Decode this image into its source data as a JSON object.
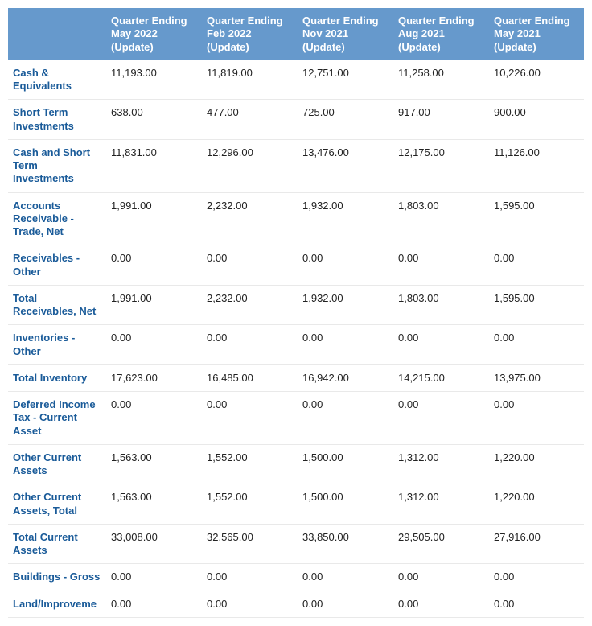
{
  "table": {
    "columns": [
      "",
      "Quarter Ending May 2022 (Update)",
      "Quarter Ending Feb 2022 (Update)",
      "Quarter Ending Nov 2021 (Update)",
      "Quarter Ending Aug 2021 (Update)",
      "Quarter Ending May 2021 (Update)"
    ],
    "rows": [
      {
        "label": "Cash & Equivalents",
        "values": [
          "11,193.00",
          "11,819.00",
          "12,751.00",
          "11,258.00",
          "10,226.00"
        ]
      },
      {
        "label": "Short Term Investments",
        "values": [
          "638.00",
          "477.00",
          "725.00",
          "917.00",
          "900.00"
        ]
      },
      {
        "label": "Cash and Short Term Investments",
        "values": [
          "11,831.00",
          "12,296.00",
          "13,476.00",
          "12,175.00",
          "11,126.00"
        ]
      },
      {
        "label": "Accounts Receivable - Trade, Net",
        "values": [
          "1,991.00",
          "2,232.00",
          "1,932.00",
          "1,803.00",
          "1,595.00"
        ]
      },
      {
        "label": "Receivables - Other",
        "values": [
          "0.00",
          "0.00",
          "0.00",
          "0.00",
          "0.00"
        ]
      },
      {
        "label": "Total Receivables, Net",
        "values": [
          "1,991.00",
          "2,232.00",
          "1,932.00",
          "1,803.00",
          "1,595.00"
        ]
      },
      {
        "label": "Inventories - Other",
        "values": [
          "0.00",
          "0.00",
          "0.00",
          "0.00",
          "0.00"
        ]
      },
      {
        "label": "Total Inventory",
        "values": [
          "17,623.00",
          "16,485.00",
          "16,942.00",
          "14,215.00",
          "13,975.00"
        ]
      },
      {
        "label": "Deferred Income Tax - Current Asset",
        "values": [
          "0.00",
          "0.00",
          "0.00",
          "0.00",
          "0.00"
        ]
      },
      {
        "label": "Other Current Assets",
        "values": [
          "1,563.00",
          "1,552.00",
          "1,500.00",
          "1,312.00",
          "1,220.00"
        ]
      },
      {
        "label": "Other Current Assets, Total",
        "values": [
          "1,563.00",
          "1,552.00",
          "1,500.00",
          "1,312.00",
          "1,220.00"
        ]
      },
      {
        "label": "Total Current Assets",
        "values": [
          "33,008.00",
          "32,565.00",
          "33,850.00",
          "29,505.00",
          "27,916.00"
        ]
      },
      {
        "label": "Buildings - Gross",
        "values": [
          "0.00",
          "0.00",
          "0.00",
          "0.00",
          "0.00"
        ]
      },
      {
        "label": "Land/Improveme",
        "values": [
          "0.00",
          "0.00",
          "0.00",
          "0.00",
          "0.00"
        ]
      }
    ],
    "header_bg": "#6699cc",
    "header_text_color": "#ffffff",
    "row_label_color": "#1a5b99",
    "cell_text_color": "#222222",
    "row_border_color": "#e9e9e9",
    "font_family": "Trebuchet MS",
    "font_size_pt": 10
  }
}
